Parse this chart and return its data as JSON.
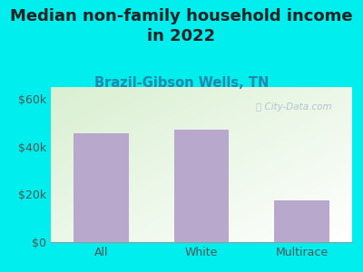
{
  "title": "Median non-family household income\nin 2022",
  "subtitle": "Brazil-Gibson Wells, TN",
  "categories": [
    "All",
    "White",
    "Multirace"
  ],
  "values": [
    45500,
    47000,
    17500
  ],
  "bar_color": "#b8a8cc",
  "background_color": "#00EEEE",
  "plot_bg_color_left": "#d8efd0",
  "plot_bg_color_right": "#f8fff8",
  "yticks": [
    0,
    20000,
    40000,
    60000
  ],
  "ytick_labels": [
    "$0",
    "$20k",
    "$40k",
    "$60k"
  ],
  "ylim": [
    0,
    65000
  ],
  "xlim": [
    -0.5,
    2.5
  ],
  "title_fontsize": 13,
  "subtitle_fontsize": 10.5,
  "tick_fontsize": 9,
  "subtitle_color": "#2288aa",
  "title_color": "#222222",
  "watermark": "City-Data.com",
  "axis_label_color": "#555555",
  "bar_width": 0.55
}
